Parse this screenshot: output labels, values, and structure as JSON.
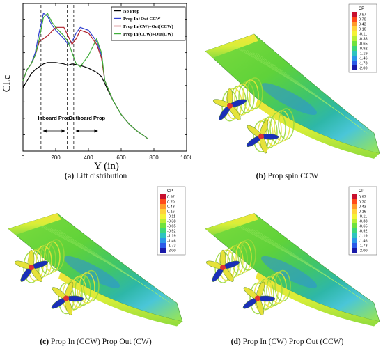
{
  "figure": {
    "captions": {
      "a": {
        "tag": "(a)",
        "text": "Lift distribution"
      },
      "b": {
        "tag": "(b)",
        "text": "Prop spin CCW"
      },
      "c": {
        "tag": "(c)",
        "text": "Prop In (CCW) Prop Out (CW)"
      },
      "d": {
        "tag": "(d)",
        "text": "Prop In (CW) Prop Out (CCW)"
      }
    },
    "colorbar": {
      "title": "CP",
      "levels": [
        "0.97",
        "0.70",
        "0.43",
        "0.16",
        "-0.11",
        "-0.38",
        "-0.65",
        "-0.92",
        "-1.19",
        "-1.46",
        "-1.73",
        "-2.00"
      ],
      "colors": [
        "#c8102e",
        "#ff4a1a",
        "#ff9a2a",
        "#ffd23a",
        "#f4f236",
        "#b9ef35",
        "#6fe23e",
        "#3ed67b",
        "#2ec3c0",
        "#2b97e8",
        "#2b5ae8",
        "#1a1aa8"
      ]
    },
    "annotations": {
      "inboard": "Inboard Prop",
      "outboard": "Outboard Prop"
    }
  },
  "chart_data": {
    "type": "line",
    "xlabel": "Y (in)",
    "ylabel": "Cl.c",
    "xlim": [
      0,
      1000
    ],
    "xticks": [
      "0",
      "200",
      "400",
      "600",
      "800",
      "1000"
    ],
    "grid": false,
    "legend_position": "top-right",
    "series": [
      {
        "name": "No Prop",
        "color": "#000000",
        "x": [
          0,
          25,
          50,
          75,
          100,
          125,
          150,
          200,
          250,
          275,
          300,
          350,
          400,
          450,
          480,
          500,
          550,
          600,
          650,
          700,
          750,
          760
        ],
        "y": [
          0.45,
          0.5,
          0.55,
          0.58,
          0.6,
          0.62,
          0.63,
          0.63,
          0.62,
          0.61,
          0.62,
          0.61,
          0.59,
          0.56,
          0.53,
          0.48,
          0.36,
          0.26,
          0.19,
          0.14,
          0.1,
          0.09
        ]
      },
      {
        "name": "Prop In+Out CCW",
        "color": "#2f3fd0",
        "x": [
          0,
          25,
          50,
          75,
          100,
          125,
          150,
          175,
          200,
          250,
          275,
          300,
          325,
          350,
          400,
          450,
          480,
          500,
          550,
          600,
          650,
          700,
          750,
          760
        ],
        "y": [
          0.5,
          0.58,
          0.62,
          0.7,
          0.85,
          0.98,
          0.96,
          0.9,
          0.86,
          0.8,
          0.76,
          0.78,
          0.84,
          0.88,
          0.86,
          0.78,
          0.68,
          0.5,
          0.36,
          0.26,
          0.19,
          0.14,
          0.1,
          0.09
        ]
      },
      {
        "name": "Prop In(CW)+Out(CCW)",
        "color": "#b0202a",
        "x": [
          0,
          25,
          50,
          75,
          100,
          125,
          150,
          175,
          200,
          250,
          275,
          300,
          325,
          350,
          400,
          450,
          480,
          500,
          550,
          600,
          650,
          700,
          750,
          760
        ],
        "y": [
          0.5,
          0.58,
          0.62,
          0.68,
          0.78,
          0.8,
          0.82,
          0.85,
          0.88,
          0.88,
          0.82,
          0.76,
          0.8,
          0.86,
          0.84,
          0.76,
          0.66,
          0.5,
          0.36,
          0.26,
          0.19,
          0.14,
          0.1,
          0.09
        ]
      },
      {
        "name": "Prop In(CCW)+Out(CW)",
        "color": "#3fae3a",
        "x": [
          0,
          25,
          50,
          75,
          100,
          125,
          150,
          175,
          200,
          250,
          275,
          300,
          325,
          350,
          400,
          450,
          480,
          500,
          550,
          600,
          650,
          700,
          750,
          760
        ],
        "y": [
          0.5,
          0.58,
          0.62,
          0.68,
          0.8,
          0.95,
          0.98,
          0.92,
          0.88,
          0.82,
          0.78,
          0.7,
          0.62,
          0.6,
          0.68,
          0.8,
          0.7,
          0.5,
          0.36,
          0.26,
          0.19,
          0.14,
          0.1,
          0.09
        ]
      }
    ],
    "regions": [
      {
        "label": "Inboard Prop",
        "x_start": 110,
        "x_end": 270
      },
      {
        "label": "Outboard Prop",
        "x_start": 310,
        "x_end": 470
      }
    ]
  }
}
